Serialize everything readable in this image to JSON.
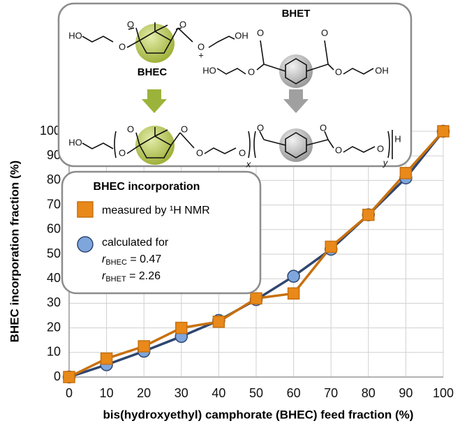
{
  "chart_data": {
    "type": "line",
    "x": [
      0,
      10,
      20,
      30,
      40,
      50,
      60,
      70,
      80,
      90,
      100
    ],
    "series": [
      {
        "name": "measured by ¹H NMR",
        "color": "#c8700e",
        "marker": "square",
        "values": [
          0,
          7.5,
          12.5,
          20,
          22.5,
          32,
          34,
          53,
          66,
          83,
          100
        ]
      },
      {
        "name": "calculated for",
        "color": "#2e4670",
        "marker": "circle",
        "values": [
          0,
          5,
          10.5,
          16.5,
          23,
          31.5,
          41,
          52,
          66,
          81,
          100
        ]
      }
    ],
    "xlim": [
      0,
      100
    ],
    "ylim": [
      0,
      100
    ],
    "xticks": [
      0,
      10,
      20,
      30,
      40,
      50,
      60,
      70,
      80,
      90,
      100
    ],
    "yticks": [
      0,
      10,
      20,
      30,
      40,
      50,
      60,
      70,
      80,
      90,
      100
    ],
    "xlabel": "bis(hydroxyethyl) camphorate (BHEC) feed fraction (%)",
    "ylabel": "BHEC incorporation fraction (%)",
    "grid": true,
    "legend_title": "BHEC incorporation",
    "legend_params": [
      {
        "symbol": "r",
        "subscript": "BHEC",
        "text": " = 0.47"
      },
      {
        "symbol": "r",
        "subscript": "BHET",
        "text": " = 2.26"
      }
    ]
  },
  "scheme": {
    "monomer_a": "BHEC",
    "monomer_b": "BHET",
    "plus": "+",
    "atoms": [
      "HO",
      "O",
      "O",
      "O",
      "O",
      "OH",
      "O",
      "O",
      "HO",
      "O",
      "O",
      "OH",
      "HO",
      "O",
      "O",
      "O",
      "O",
      "O",
      "x",
      "O",
      "O",
      "O",
      "O",
      "y",
      "H"
    ]
  }
}
